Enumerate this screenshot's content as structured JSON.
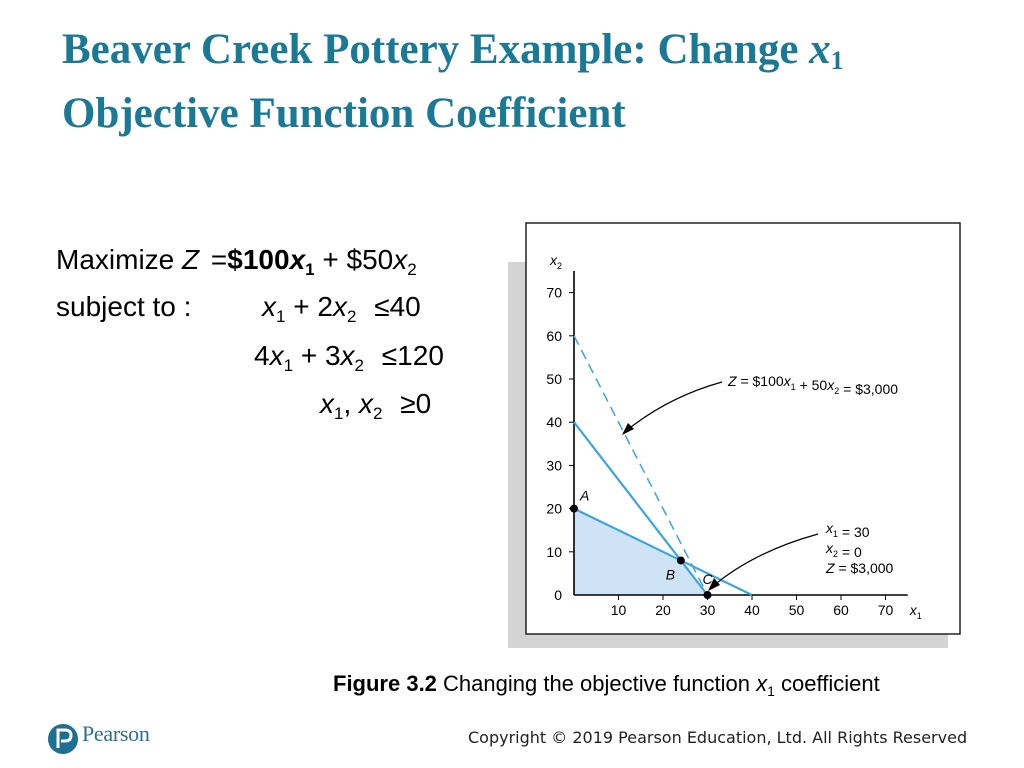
{
  "slide": {
    "title_prefix": "Beaver Creek Pottery Example: Change ",
    "title_var": "x",
    "title_sub": "1",
    "title_line2": "Objective Function Coefficient"
  },
  "model": {
    "maximize_label": "Maximize",
    "z": "Z",
    "eq": "=",
    "coef1": "$100",
    "x": "x",
    "s1": "1",
    "plus": "+",
    "coef2": "$50",
    "s2": "2",
    "subject_to": "subject to :",
    "c1_coef2": "2",
    "c1_rel": "≤",
    "c1_rhs": "40",
    "c2_coef1": "4",
    "c2_coef2": "3",
    "c2_rel": "≤",
    "c2_rhs": "120",
    "comma": ",",
    "nn_rel": "≥",
    "nn_rhs": "0"
  },
  "chart_data": {
    "type": "line",
    "xlabel": "x1",
    "ylabel": "x2",
    "xlim": [
      0,
      75
    ],
    "ylim": [
      0,
      75
    ],
    "x_ticks": [
      10,
      20,
      30,
      40,
      50,
      60,
      70
    ],
    "y_ticks": [
      0,
      10,
      20,
      30,
      40,
      50,
      60,
      70
    ],
    "series": [
      {
        "values": [
          [
            0,
            40
          ],
          [
            24,
            8
          ],
          [
            30,
            0
          ]
        ]
      },
      {
        "values": [
          [
            0,
            20
          ],
          [
            24,
            8
          ],
          [
            40,
            0
          ]
        ]
      },
      {
        "values": [
          [
            0,
            60
          ],
          [
            30,
            0
          ]
        ],
        "style": "dashed"
      }
    ],
    "feasible_region": [
      [
        0,
        0
      ],
      [
        0,
        20
      ],
      [
        24,
        8
      ],
      [
        30,
        0
      ]
    ],
    "points": [
      {
        "label": "A",
        "x": 0,
        "y": 20
      },
      {
        "label": "B",
        "x": 24,
        "y": 8
      },
      {
        "label": "C",
        "x": 30,
        "y": 0
      }
    ],
    "annotations": [
      "Z = $100x1 + 50x2 = $3,000",
      "x1 = 30",
      "x2 = 0",
      "Z = $3,000"
    ],
    "colors": {
      "line": "#3aa6dc",
      "region": "#cfe3f7",
      "shadow": "#d4d4d4"
    },
    "grid": false
  },
  "caption": {
    "fig_label": "Figure 3.2",
    "text_before": " Changing the objective function ",
    "var": "x",
    "sub": "1",
    "text_after": " coefficient"
  },
  "footer": {
    "logo_text": "Pearson",
    "copyright": "Copyright © 2019 Pearson Education, Ltd. All Rights Reserved"
  }
}
